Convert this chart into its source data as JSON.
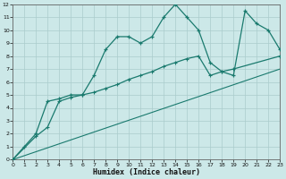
{
  "bg_color": "#cce8e8",
  "grid_color": "#aacccc",
  "line_color": "#1a7a6e",
  "xlabel": "Humidex (Indice chaleur)",
  "xlim": [
    0,
    23
  ],
  "ylim": [
    0,
    12
  ],
  "xticks": [
    0,
    1,
    2,
    3,
    4,
    5,
    6,
    7,
    8,
    9,
    10,
    11,
    12,
    13,
    14,
    15,
    16,
    17,
    18,
    19,
    20,
    21,
    22,
    23
  ],
  "yticks": [
    0,
    1,
    2,
    3,
    4,
    5,
    6,
    7,
    8,
    9,
    10,
    11,
    12
  ],
  "curve1_x": [
    0,
    1,
    2,
    3,
    4,
    5,
    6,
    7,
    8,
    9,
    10,
    11,
    12,
    13,
    14,
    15,
    16,
    17,
    18,
    19,
    20,
    21,
    22,
    23
  ],
  "curve1_y": [
    0.0,
    1.0,
    2.0,
    4.5,
    4.7,
    5.0,
    5.0,
    6.5,
    8.5,
    9.5,
    9.5,
    9.0,
    9.5,
    11.0,
    12.0,
    11.0,
    10.0,
    7.5,
    6.8,
    6.5,
    11.5,
    10.5,
    10.0,
    8.5
  ],
  "curve2_x": [
    0,
    2,
    3,
    4,
    5,
    6,
    7,
    8,
    9,
    10,
    11,
    12,
    13,
    14,
    15,
    16,
    17,
    18,
    19,
    23
  ],
  "curve2_y": [
    0.0,
    1.8,
    2.5,
    4.5,
    4.8,
    5.0,
    5.2,
    5.5,
    5.8,
    6.2,
    6.5,
    6.8,
    7.2,
    7.5,
    7.8,
    8.0,
    6.5,
    6.8,
    7.0,
    8.0
  ],
  "curve3_x": [
    0,
    23
  ],
  "curve3_y": [
    0.0,
    7.0
  ]
}
